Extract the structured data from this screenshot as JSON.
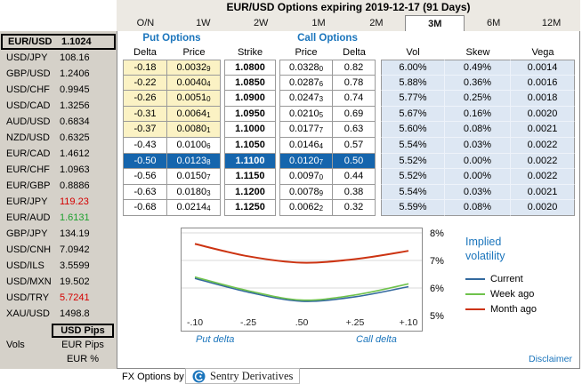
{
  "title": "EUR/USD Options expiring 2019-12-17 (91 Days)",
  "tabs": {
    "items": [
      "O/N",
      "1W",
      "2W",
      "1M",
      "2M",
      "3M",
      "6M",
      "12M"
    ],
    "active": "3M"
  },
  "colors": {
    "accent_blue": "#1b75bc",
    "selected_row": "#1565ad",
    "otm_highlight": "#fbf2c4"
  },
  "sidebar": {
    "pairs": [
      {
        "pair": "EUR/USD",
        "value": "1.1024",
        "color": "black",
        "boxed": true
      },
      {
        "pair": "USD/JPY",
        "value": "108.16",
        "color": "black"
      },
      {
        "pair": "GBP/USD",
        "value": "1.2406",
        "color": "black"
      },
      {
        "pair": "USD/CHF",
        "value": "0.9945",
        "color": "black"
      },
      {
        "pair": "USD/CAD",
        "value": "1.3256",
        "color": "black"
      },
      {
        "pair": "AUD/USD",
        "value": "0.6834",
        "color": "black"
      },
      {
        "pair": "NZD/USD",
        "value": "0.6325",
        "color": "black"
      },
      {
        "pair": "EUR/CAD",
        "value": "1.4612",
        "color": "black"
      },
      {
        "pair": "EUR/CHF",
        "value": "1.0963",
        "color": "black"
      },
      {
        "pair": "EUR/GBP",
        "value": "0.8886",
        "color": "black"
      },
      {
        "pair": "EUR/JPY",
        "value": "119.23",
        "color": "red"
      },
      {
        "pair": "EUR/AUD",
        "value": "1.6131",
        "color": "green"
      },
      {
        "pair": "GBP/JPY",
        "value": "134.19",
        "color": "black"
      },
      {
        "pair": "USD/CNH",
        "value": "7.0942",
        "color": "black"
      },
      {
        "pair": "USD/ILS",
        "value": "3.5599",
        "color": "black"
      },
      {
        "pair": "USD/MXN",
        "value": "19.502",
        "color": "black"
      },
      {
        "pair": "USD/TRY",
        "value": "5.7241",
        "color": "red"
      },
      {
        "pair": "XAU/USD",
        "value": "1498.8",
        "color": "black"
      }
    ],
    "usd_pips_label": "USD Pips",
    "vols_label": "Vols",
    "eur_pips_label": "EUR Pips",
    "eur_pct_label": "EUR %"
  },
  "options_table": {
    "put_header": "Put Options",
    "call_header": "Call Options",
    "columns": [
      "Delta",
      "Price",
      "Strike",
      "Price",
      "Delta",
      "Vol",
      "Skew",
      "Vega"
    ],
    "rows": [
      {
        "put_delta": "-0.18",
        "put_price": "0.0032",
        "put_price_sub": "9",
        "strike": "1.0800",
        "call_price": "0.0328",
        "call_price_sub": "0",
        "call_delta": "0.82",
        "vol": "6.00%",
        "skew": "0.49%",
        "vega": "0.0014",
        "put_bg": "yellow",
        "selected": false
      },
      {
        "put_delta": "-0.22",
        "put_price": "0.0040",
        "put_price_sub": "4",
        "strike": "1.0850",
        "call_price": "0.0287",
        "call_price_sub": "6",
        "call_delta": "0.78",
        "vol": "5.88%",
        "skew": "0.36%",
        "vega": "0.0016",
        "put_bg": "yellow",
        "selected": false
      },
      {
        "put_delta": "-0.26",
        "put_price": "0.0051",
        "put_price_sub": "0",
        "strike": "1.0900",
        "call_price": "0.0247",
        "call_price_sub": "3",
        "call_delta": "0.74",
        "vol": "5.77%",
        "skew": "0.25%",
        "vega": "0.0018",
        "put_bg": "yellow",
        "selected": false
      },
      {
        "put_delta": "-0.31",
        "put_price": "0.0064",
        "put_price_sub": "1",
        "strike": "1.0950",
        "call_price": "0.0210",
        "call_price_sub": "5",
        "call_delta": "0.69",
        "vol": "5.67%",
        "skew": "0.16%",
        "vega": "0.0020",
        "put_bg": "yellow",
        "selected": false
      },
      {
        "put_delta": "-0.37",
        "put_price": "0.0080",
        "put_price_sub": "1",
        "strike": "1.1000",
        "call_price": "0.0177",
        "call_price_sub": "7",
        "call_delta": "0.63",
        "vol": "5.60%",
        "skew": "0.08%",
        "vega": "0.0021",
        "put_bg": "yellow",
        "selected": false
      },
      {
        "put_delta": "-0.43",
        "put_price": "0.0100",
        "put_price_sub": "6",
        "strike": "1.1050",
        "call_price": "0.0146",
        "call_price_sub": "4",
        "call_delta": "0.57",
        "vol": "5.54%",
        "skew": "0.03%",
        "vega": "0.0022",
        "put_bg": "none",
        "selected": false
      },
      {
        "put_delta": "-0.50",
        "put_price": "0.0123",
        "put_price_sub": "8",
        "strike": "1.1100",
        "call_price": "0.0120",
        "call_price_sub": "7",
        "call_delta": "0.50",
        "vol": "5.52%",
        "skew": "0.00%",
        "vega": "0.0022",
        "put_bg": "none",
        "selected": true
      },
      {
        "put_delta": "-0.56",
        "put_price": "0.0150",
        "put_price_sub": "7",
        "strike": "1.1150",
        "call_price": "0.0097",
        "call_price_sub": "0",
        "call_delta": "0.44",
        "vol": "5.52%",
        "skew": "0.00%",
        "vega": "0.0022",
        "put_bg": "none",
        "selected": false
      },
      {
        "put_delta": "-0.63",
        "put_price": "0.0180",
        "put_price_sub": "3",
        "strike": "1.1200",
        "call_price": "0.0078",
        "call_price_sub": "9",
        "call_delta": "0.38",
        "vol": "5.54%",
        "skew": "0.03%",
        "vega": "0.0021",
        "put_bg": "none",
        "selected": false
      },
      {
        "put_delta": "-0.68",
        "put_price": "0.0214",
        "put_price_sub": "4",
        "strike": "1.1250",
        "call_price": "0.0062",
        "call_price_sub": "2",
        "call_delta": "0.32",
        "vol": "5.59%",
        "skew": "0.08%",
        "vega": "0.0020",
        "put_bg": "none",
        "selected": false
      }
    ]
  },
  "chart_data": {
    "type": "line",
    "title": "Implied volatility smile",
    "x_labels": [
      "-.10",
      "-.25",
      ".50",
      "+.25",
      "+.10"
    ],
    "xlabel_left": "Put delta",
    "xlabel_right": "Call delta",
    "ylim": [
      5,
      8
    ],
    "y_ticks": [
      {
        "label": "8%",
        "value": 8
      },
      {
        "label": "7%",
        "value": 7
      },
      {
        "label": "6%",
        "value": 6
      },
      {
        "label": "5%",
        "value": 5
      }
    ],
    "grid": true,
    "legend_position": "right",
    "series": [
      {
        "name": "Current",
        "color": "#33699e",
        "values": [
          6.35,
          5.85,
          5.52,
          5.68,
          6.05
        ]
      },
      {
        "name": "Week ago",
        "color": "#6fc24c",
        "values": [
          6.4,
          5.9,
          5.56,
          5.75,
          6.15
        ]
      },
      {
        "name": "Month ago",
        "color": "#cc3311",
        "values": [
          7.6,
          7.15,
          6.92,
          7.05,
          7.35
        ]
      }
    ]
  },
  "legend": {
    "title_line1": "Implied",
    "title_line2": "volatility",
    "items": [
      {
        "label": "Current",
        "color": "#33699e"
      },
      {
        "label": "Week ago",
        "color": "#6fc24c"
      },
      {
        "label": "Month ago",
        "color": "#cc3311"
      }
    ]
  },
  "footer": {
    "prefix": "FX Options by",
    "brand": "Sentry Derivatives",
    "disclaimer": "Disclaimer"
  }
}
